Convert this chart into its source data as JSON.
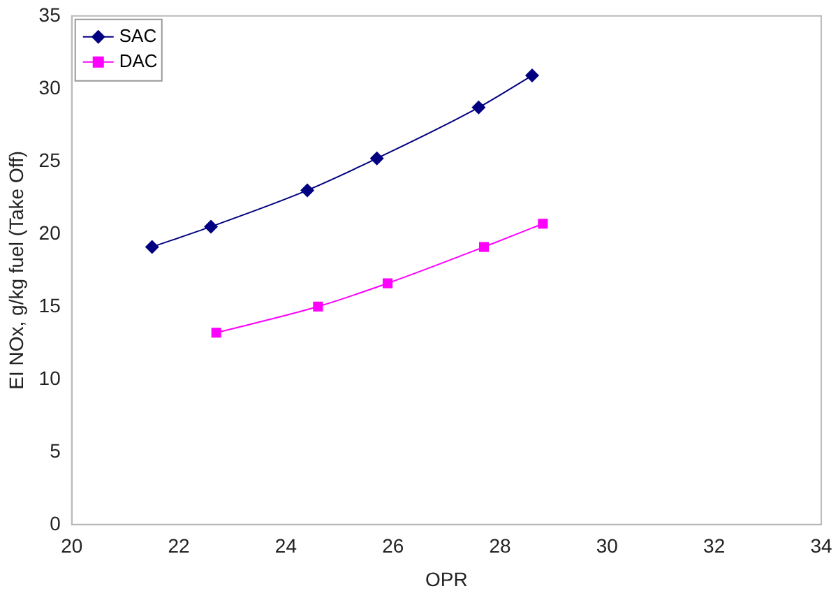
{
  "chart_data": {
    "type": "line",
    "xlabel": "OPR",
    "ylabel": "EI NOx, g/kg fuel (Take Off)",
    "xlim": [
      20,
      34
    ],
    "xticks": [
      20,
      22,
      24,
      26,
      28,
      30,
      32,
      34
    ],
    "ylim": [
      0,
      35
    ],
    "yticks": [
      0,
      5,
      10,
      15,
      20,
      25,
      30,
      35
    ],
    "grid": false,
    "legend": "top left",
    "series": [
      {
        "name": "SAC",
        "color": "#000080",
        "marker": "diamond",
        "x": [
          21.5,
          22.6,
          24.4,
          25.7,
          27.6,
          28.6
        ],
        "values": [
          19.1,
          20.5,
          23.0,
          25.2,
          28.7,
          30.9
        ]
      },
      {
        "name": "DAC",
        "color": "#ff00ff",
        "marker": "square",
        "x": [
          22.7,
          24.6,
          25.9,
          27.7,
          28.8
        ],
        "values": [
          13.2,
          15.0,
          16.6,
          19.1,
          20.7
        ]
      }
    ]
  }
}
